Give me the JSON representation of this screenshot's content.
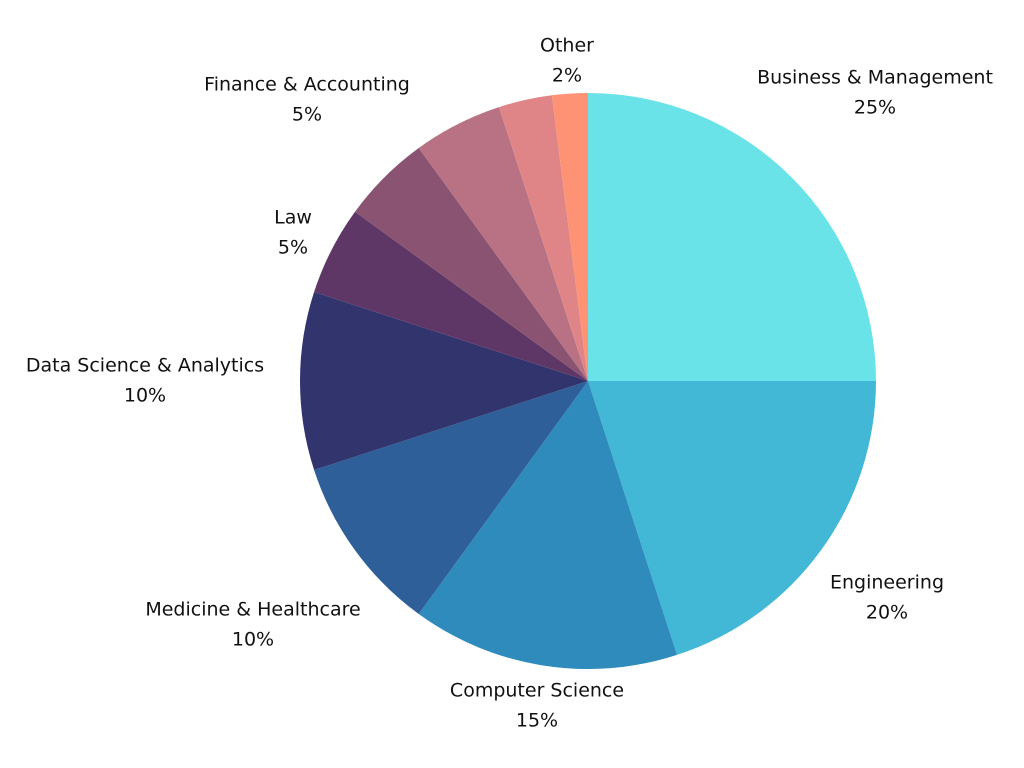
{
  "chart_data": {
    "type": "pie",
    "categories": [
      "Business & Management",
      "Engineering",
      "Computer Science",
      "Medicine & Healthcare",
      "Data Science & Analytics",
      "Law",
      "Finance & Accounting",
      null,
      null,
      "Other"
    ],
    "values": [
      25,
      20,
      15,
      10,
      10,
      5,
      5,
      5,
      3,
      2
    ],
    "value_labels": [
      "25%",
      "20%",
      "15%",
      "10%",
      "10%",
      "5%",
      "5%",
      null,
      null,
      "2%"
    ],
    "colors": [
      "#6ae3e8",
      "#42b8d6",
      "#2e8bbb",
      "#2f5f98",
      "#32346e",
      "#5e3766",
      "#8a5372",
      "#b87283",
      "#e08587",
      "#fd9374"
    ]
  }
}
